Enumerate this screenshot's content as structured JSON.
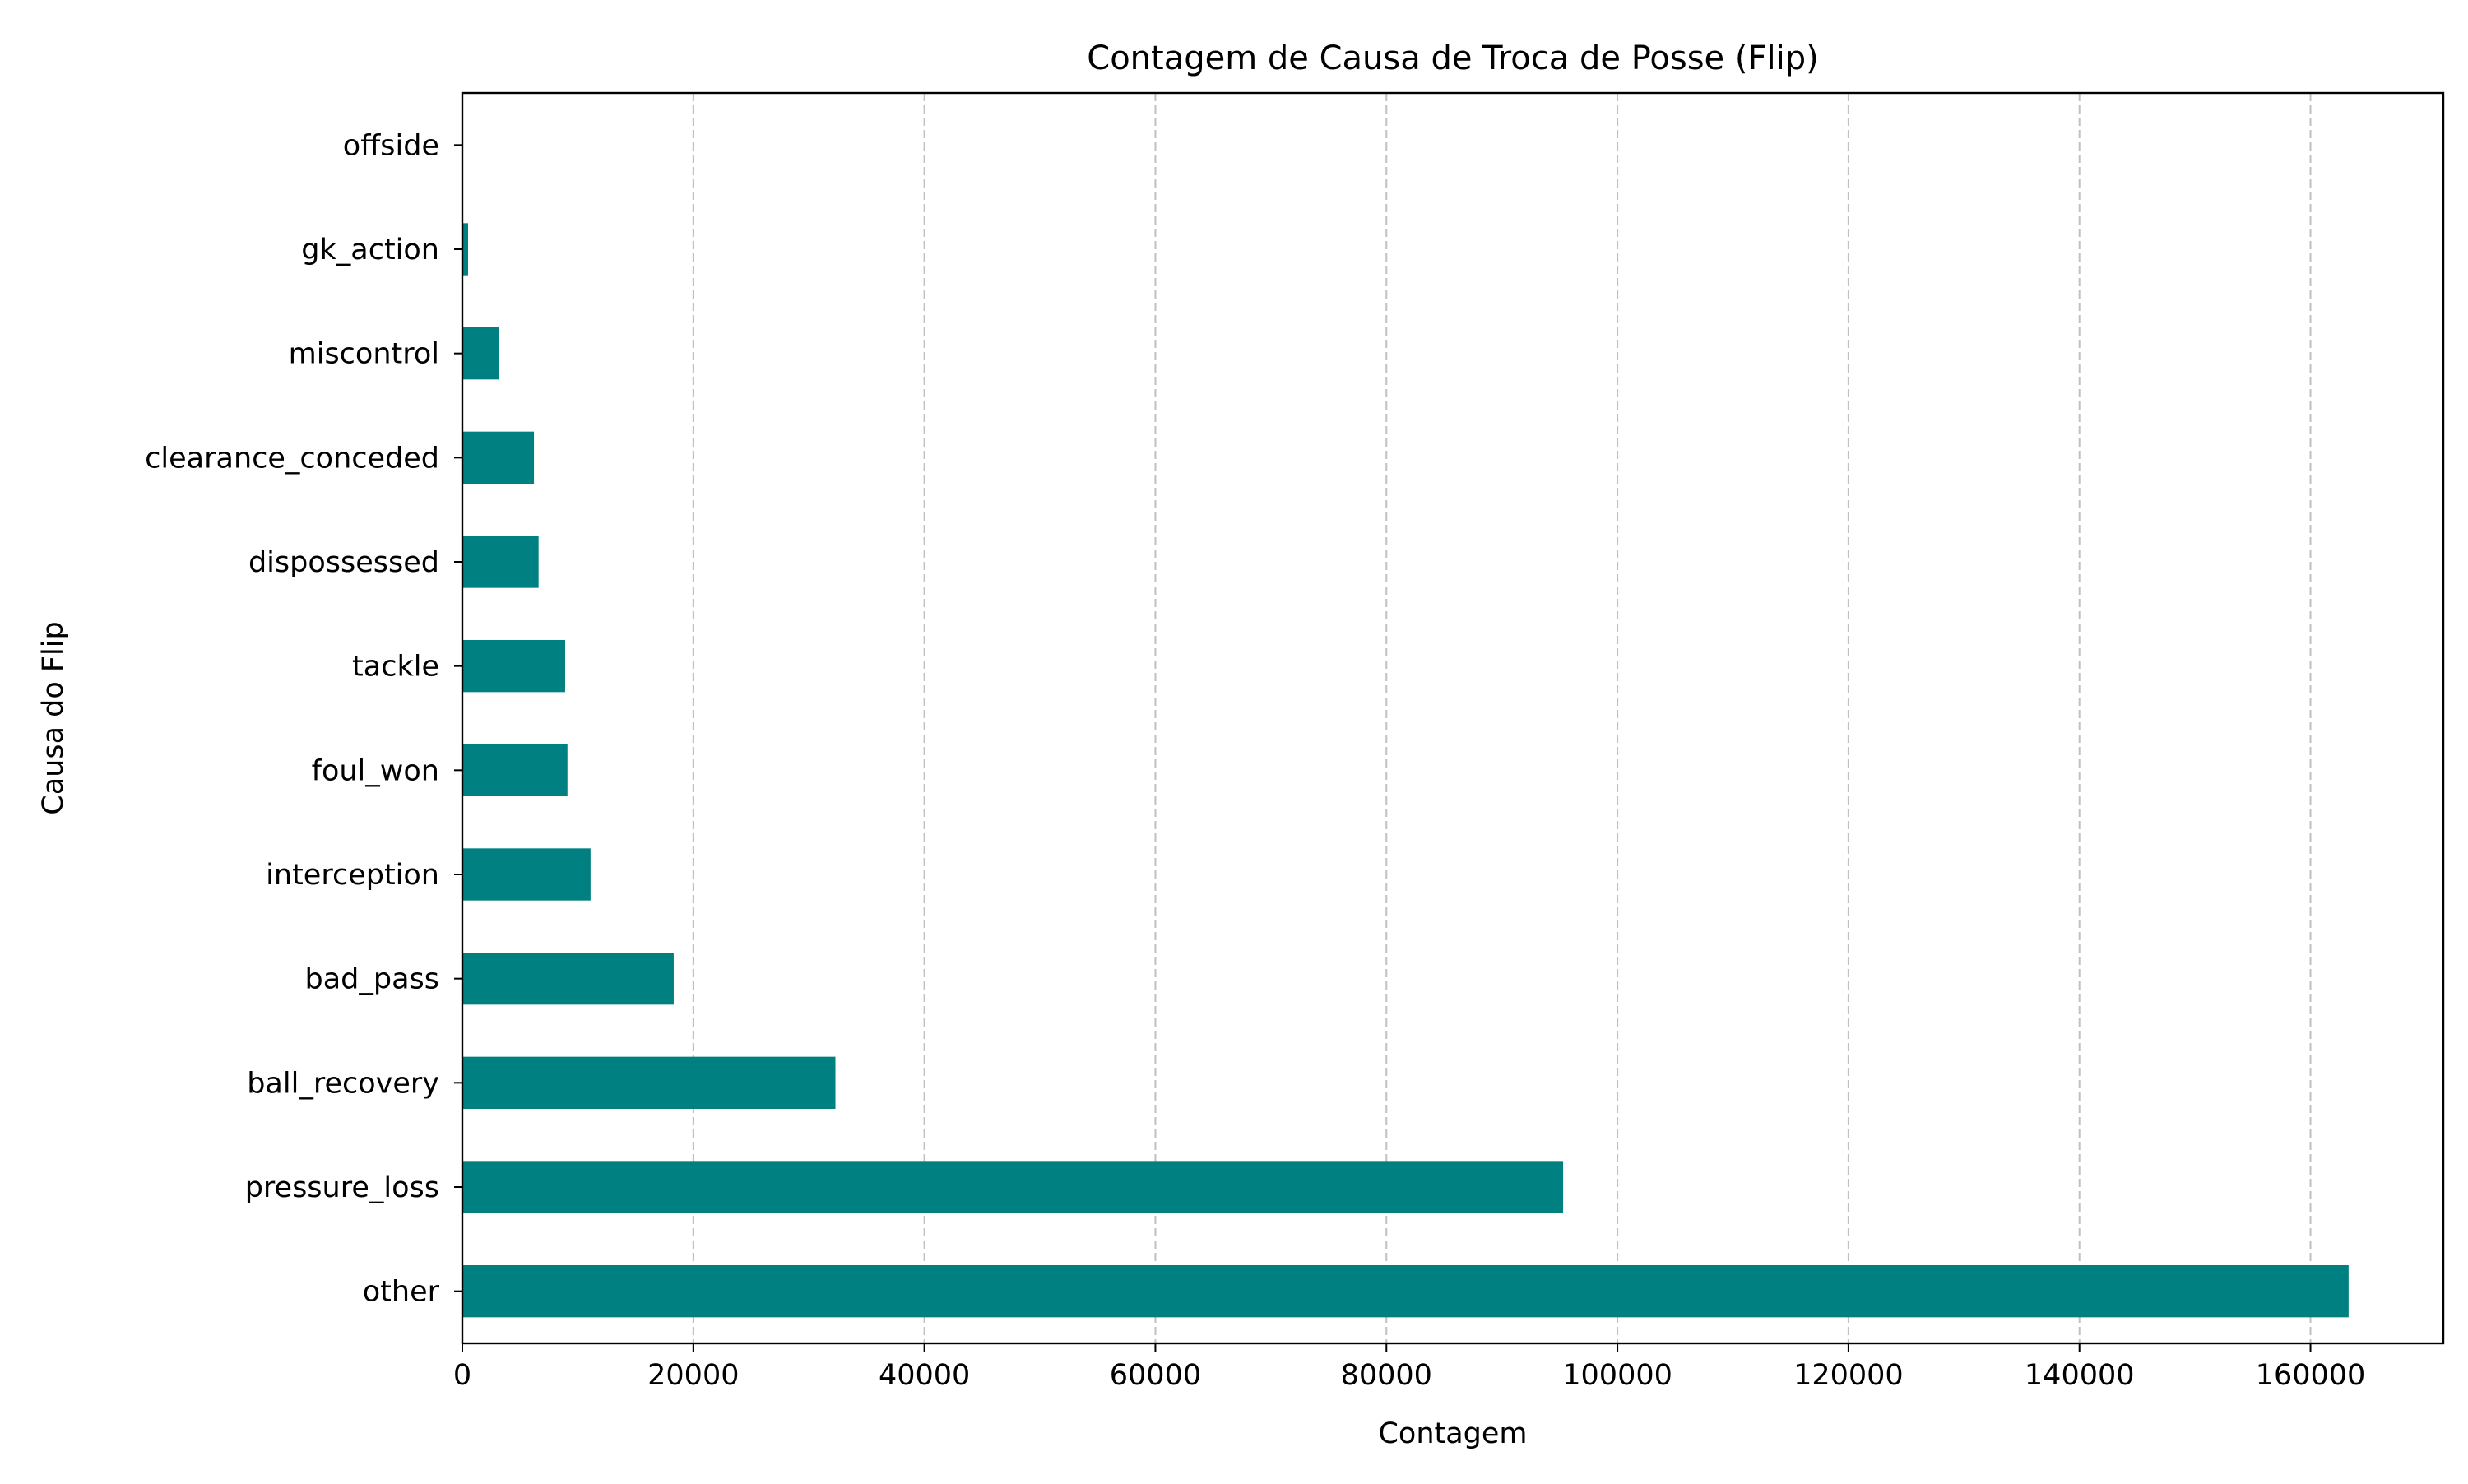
{
  "chart_data": {
    "type": "bar",
    "orientation": "horizontal",
    "title": "Contagem de Causa de Troca de Posse (Flip)",
    "xlabel": "Contagem",
    "ylabel": "Causa do Flip",
    "categories": [
      "other",
      "pressure_loss",
      "ball_recovery",
      "bad_pass",
      "interception",
      "foul_won",
      "tackle",
      "dispossessed",
      "clearance_conceded",
      "miscontrol",
      "gk_action",
      "offside"
    ],
    "values": [
      163300,
      95300,
      32300,
      18300,
      11100,
      9100,
      8900,
      6600,
      6200,
      3200,
      500,
      30
    ],
    "xlim": [
      0,
      171500
    ],
    "xticks": [
      0,
      20000,
      40000,
      60000,
      80000,
      100000,
      120000,
      140000,
      160000
    ],
    "xtick_labels": [
      "0",
      "20000",
      "40000",
      "60000",
      "80000",
      "100000",
      "120000",
      "140000",
      "160000"
    ],
    "grid": "x-axis dashed",
    "bar_color": "#008080",
    "grid_color": "#c0c0c0"
  }
}
